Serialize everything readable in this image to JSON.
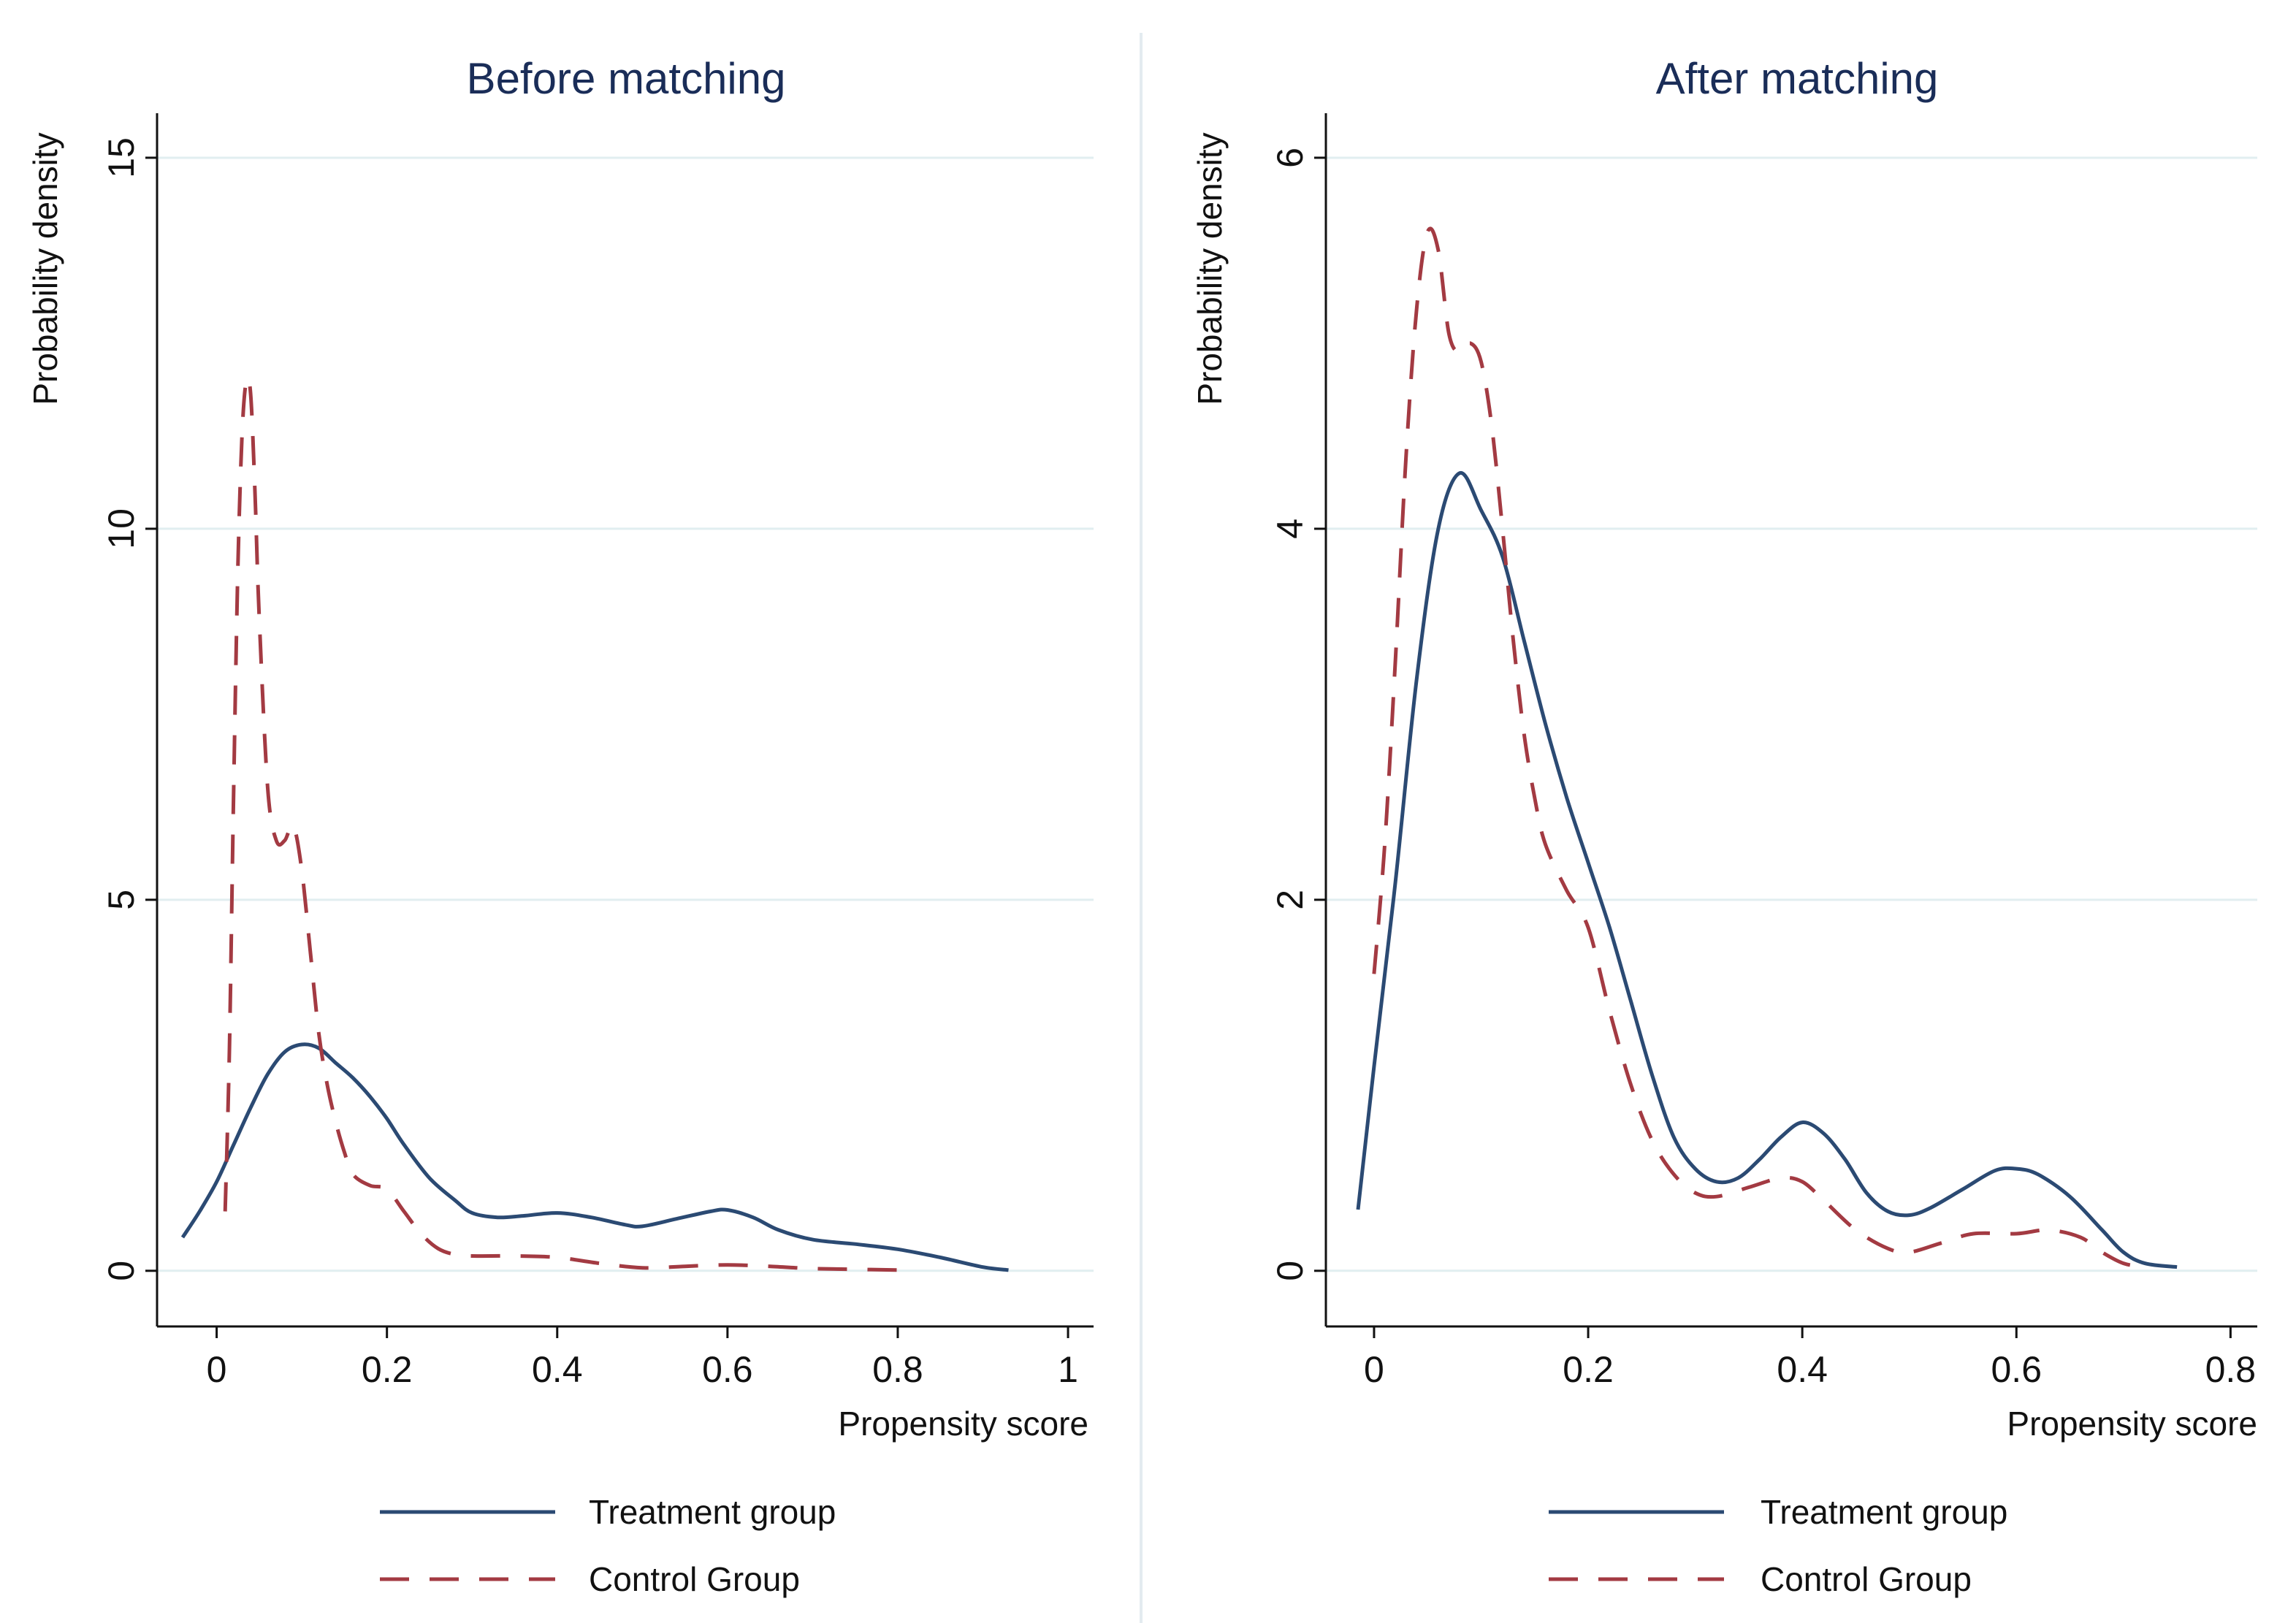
{
  "chart_data": [
    {
      "type": "line",
      "title": "Before matching",
      "xlabel": "Propensity score",
      "ylabel": "Probability density",
      "xlim": [
        -0.07,
        1.03
      ],
      "ylim": [
        -0.75,
        15.6
      ],
      "xticks": [
        0,
        0.2,
        0.4,
        0.6,
        0.8,
        1
      ],
      "xtick_labels": [
        "0",
        "0.2",
        "0.4",
        "0.6",
        "0.8",
        "1"
      ],
      "yticks": [
        0,
        5,
        10,
        15
      ],
      "ytick_labels": [
        "0",
        "5",
        "10",
        "15"
      ],
      "grid": true,
      "legend_position": "bottom",
      "series": [
        {
          "name": "Treatment group",
          "color": "#2b4a73",
          "style": "solid",
          "x": [
            -0.04,
            -0.02,
            0.0,
            0.02,
            0.04,
            0.06,
            0.08,
            0.1,
            0.12,
            0.14,
            0.16,
            0.18,
            0.2,
            0.22,
            0.25,
            0.28,
            0.3,
            0.33,
            0.36,
            0.4,
            0.44,
            0.48,
            0.5,
            0.54,
            0.58,
            0.6,
            0.63,
            0.66,
            0.7,
            0.75,
            0.8,
            0.85,
            0.9,
            0.93
          ],
          "y": [
            0.45,
            0.8,
            1.2,
            1.7,
            2.2,
            2.65,
            2.95,
            3.05,
            3.0,
            2.8,
            2.6,
            2.35,
            2.05,
            1.7,
            1.25,
            0.95,
            0.78,
            0.72,
            0.74,
            0.78,
            0.72,
            0.62,
            0.6,
            0.7,
            0.8,
            0.82,
            0.72,
            0.55,
            0.42,
            0.36,
            0.29,
            0.18,
            0.05,
            0.01
          ]
        },
        {
          "name": "Control Group",
          "color": "#a33a42",
          "style": "dashed",
          "x": [
            0.01,
            0.015,
            0.02,
            0.025,
            0.03,
            0.035,
            0.04,
            0.045,
            0.05,
            0.06,
            0.07,
            0.08,
            0.09,
            0.1,
            0.11,
            0.12,
            0.13,
            0.14,
            0.15,
            0.16,
            0.18,
            0.2,
            0.22,
            0.24,
            0.26,
            0.28,
            0.3,
            0.35,
            0.4,
            0.45,
            0.5,
            0.55,
            0.6,
            0.65,
            0.7,
            0.75,
            0.8
          ],
          "y": [
            0.8,
            3.0,
            6.5,
            9.5,
            11.3,
            12.0,
            11.8,
            10.5,
            8.8,
            6.5,
            5.8,
            5.8,
            6.0,
            5.4,
            4.3,
            3.2,
            2.5,
            2.0,
            1.6,
            1.3,
            1.15,
            1.1,
            0.8,
            0.5,
            0.3,
            0.22,
            0.2,
            0.2,
            0.18,
            0.1,
            0.04,
            0.06,
            0.08,
            0.06,
            0.03,
            0.02,
            0.01
          ]
        }
      ]
    },
    {
      "type": "line",
      "title": "After matching",
      "xlabel": "Propensity score",
      "ylabel": "Probability density",
      "xlim": [
        -0.045,
        0.825
      ],
      "ylim": [
        -0.3,
        6.24
      ],
      "xticks": [
        0,
        0.2,
        0.4,
        0.6,
        0.8
      ],
      "xtick_labels": [
        "0",
        "0.2",
        "0.4",
        "0.6",
        "0.8"
      ],
      "yticks": [
        0,
        2,
        4,
        6
      ],
      "ytick_labels": [
        "0",
        "2",
        "4",
        "6"
      ],
      "grid": true,
      "legend_position": "bottom",
      "series": [
        {
          "name": "Treatment group",
          "color": "#2b4a73",
          "style": "solid",
          "x": [
            -0.015,
            0.0,
            0.02,
            0.04,
            0.06,
            0.08,
            0.1,
            0.12,
            0.14,
            0.16,
            0.18,
            0.2,
            0.22,
            0.24,
            0.26,
            0.28,
            0.3,
            0.32,
            0.34,
            0.36,
            0.38,
            0.4,
            0.42,
            0.44,
            0.46,
            0.48,
            0.5,
            0.52,
            0.55,
            0.58,
            0.6,
            0.62,
            0.65,
            0.68,
            0.7,
            0.72,
            0.75
          ],
          "y": [
            0.33,
            1.1,
            2.1,
            3.2,
            4.0,
            4.3,
            4.1,
            3.85,
            3.4,
            2.95,
            2.55,
            2.2,
            1.85,
            1.45,
            1.05,
            0.72,
            0.55,
            0.48,
            0.5,
            0.6,
            0.72,
            0.8,
            0.74,
            0.6,
            0.42,
            0.32,
            0.3,
            0.34,
            0.44,
            0.54,
            0.55,
            0.52,
            0.4,
            0.22,
            0.1,
            0.04,
            0.02
          ]
        },
        {
          "name": "Control Group",
          "color": "#a33a42",
          "style": "dashed",
          "x": [
            0.0,
            0.01,
            0.02,
            0.03,
            0.04,
            0.05,
            0.06,
            0.07,
            0.08,
            0.09,
            0.1,
            0.11,
            0.12,
            0.13,
            0.14,
            0.15,
            0.16,
            0.18,
            0.2,
            0.22,
            0.24,
            0.26,
            0.28,
            0.3,
            0.32,
            0.35,
            0.38,
            0.4,
            0.42,
            0.45,
            0.48,
            0.5,
            0.53,
            0.56,
            0.6,
            0.63,
            0.66,
            0.68,
            0.7,
            0.72
          ],
          "y": [
            1.6,
            2.3,
            3.3,
            4.4,
            5.2,
            5.6,
            5.5,
            5.05,
            4.95,
            5.0,
            4.9,
            4.55,
            4.0,
            3.4,
            2.9,
            2.55,
            2.3,
            2.05,
            1.85,
            1.4,
            1.0,
            0.7,
            0.52,
            0.42,
            0.4,
            0.45,
            0.5,
            0.48,
            0.38,
            0.22,
            0.12,
            0.1,
            0.15,
            0.2,
            0.2,
            0.22,
            0.18,
            0.1,
            0.04,
            0.02
          ]
        }
      ]
    }
  ]
}
